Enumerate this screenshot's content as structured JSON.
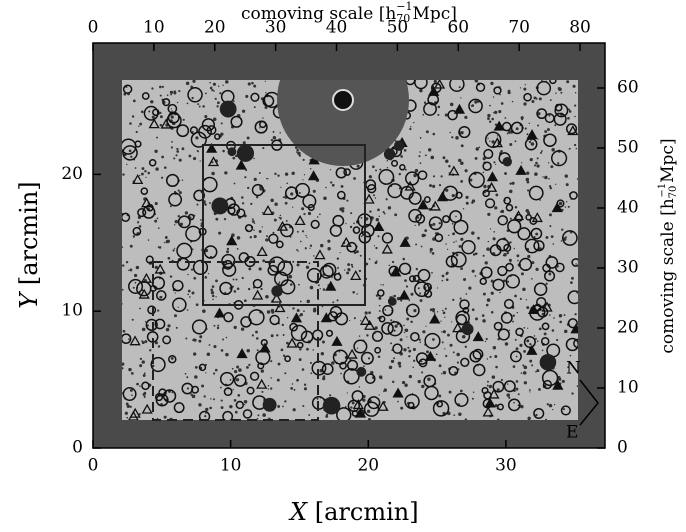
{
  "chart_data": {
    "type": "image",
    "xlabel": {
      "var": "X",
      "unit": "[arcmin]"
    },
    "ylabel": {
      "var": "Y",
      "unit": "[arcmin]"
    },
    "x2label": {
      "prefix": "comoving scale [h",
      "sub": "70",
      "sup": "−1",
      "suffix": "Mpc]"
    },
    "y2label": {
      "prefix": "comoving scale [h",
      "sub": "70",
      "sup": "−1",
      "suffix": "Mpc]"
    },
    "xlim": [
      0,
      37.2
    ],
    "xticks": [
      0,
      10,
      20,
      30
    ],
    "ylim": [
      0,
      29.6
    ],
    "yticks": [
      0,
      10,
      20
    ],
    "x2lim": [
      0,
      84.1
    ],
    "x2ticks": [
      0,
      10,
      20,
      30,
      40,
      50,
      60,
      70,
      80
    ],
    "y2lim": [
      0,
      67.5
    ],
    "y2ticks": [
      0,
      10,
      20,
      30,
      40,
      50,
      60
    ],
    "annotations": [
      "N",
      "E"
    ]
  }
}
